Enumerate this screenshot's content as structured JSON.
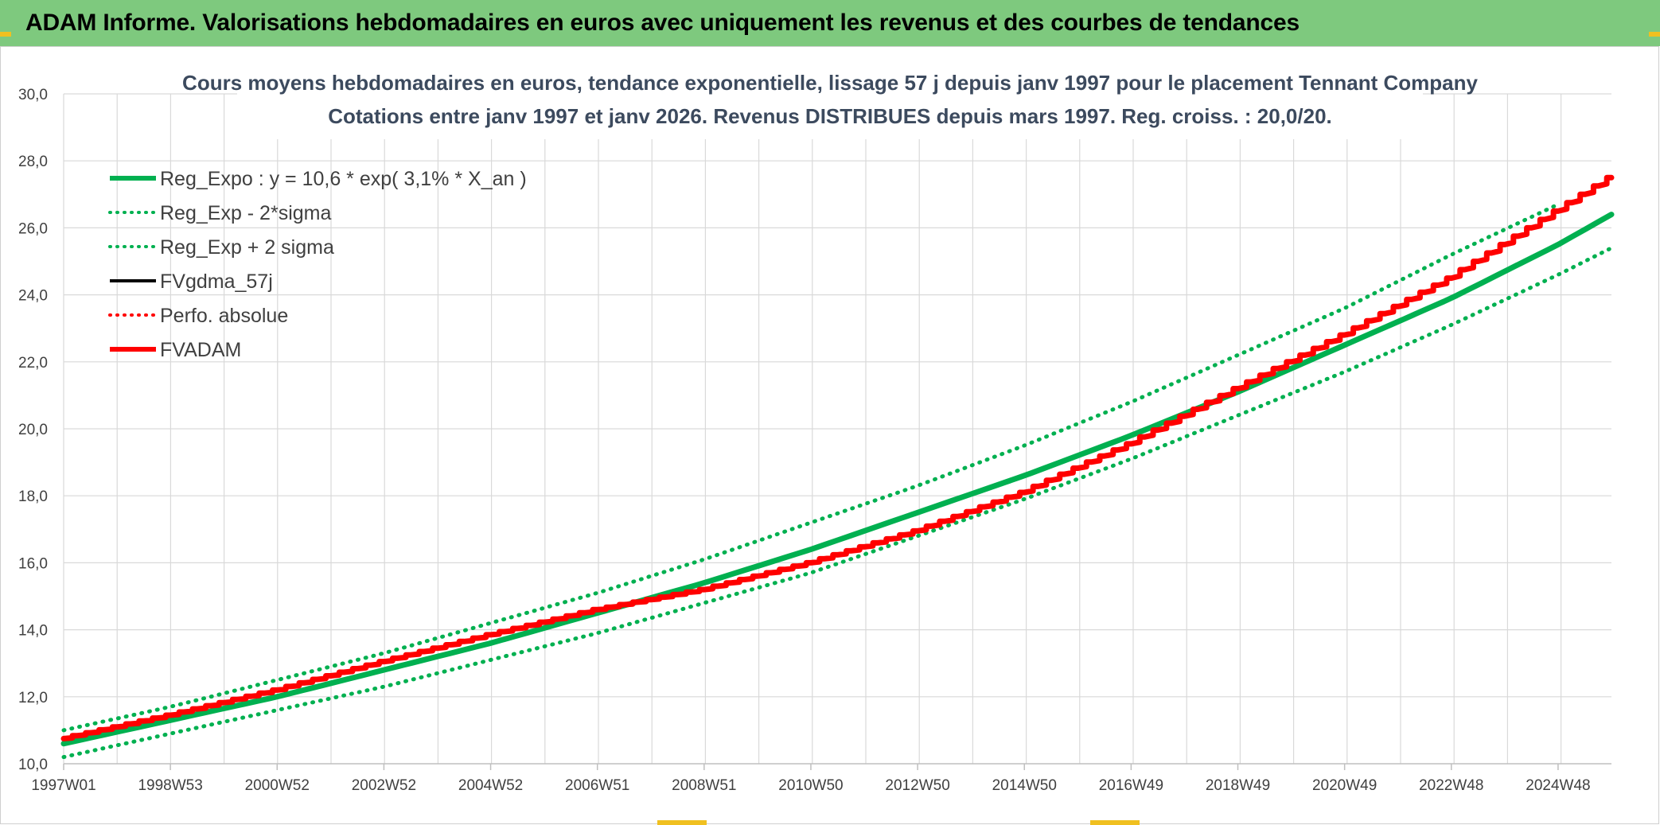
{
  "banner": {
    "title": "ADAM Informe. Valorisations hebdomadaires en euros avec uniquement les revenus et des courbes de tendances"
  },
  "colors": {
    "banner_bg": "#7ec97e",
    "green": "#00b050",
    "red": "#ff0000",
    "black": "#000000",
    "grid": "#d9d9d9",
    "accent": "#f0c020"
  },
  "chart_data": {
    "type": "line",
    "title": "Cours moyens hebdomadaires en euros, tendance exponentielle, lissage 57 j depuis janv 1997 pour le placement Tennant Company",
    "subtitle": "Cotations entre janv 1997 et janv 2026. Revenus DISTRIBUES depuis mars 1997. Reg. croiss. : 20,0/20.",
    "xlabel": "",
    "ylabel": "",
    "ylim": [
      10,
      30
    ],
    "yticks": [
      "10,0",
      "12,0",
      "14,0",
      "16,0",
      "18,0",
      "20,0",
      "22,0",
      "24,0",
      "26,0",
      "28,0",
      "30,0"
    ],
    "xlim": [
      1997.0,
      2026.0
    ],
    "xticks": [
      {
        "label": "1997W01",
        "year": 1997.0
      },
      {
        "label": "1998W53",
        "year": 1999.0
      },
      {
        "label": "2000W52",
        "year": 2001.0
      },
      {
        "label": "2002W52",
        "year": 2003.0
      },
      {
        "label": "2004W52",
        "year": 2005.0
      },
      {
        "label": "2006W51",
        "year": 2007.0
      },
      {
        "label": "2008W51",
        "year": 2009.0
      },
      {
        "label": "2010W50",
        "year": 2011.0
      },
      {
        "label": "2012W50",
        "year": 2013.0
      },
      {
        "label": "2014W50",
        "year": 2015.0
      },
      {
        "label": "2016W49",
        "year": 2017.0
      },
      {
        "label": "2018W49",
        "year": 2019.0
      },
      {
        "label": "2020W49",
        "year": 2021.0
      },
      {
        "label": "2022W48",
        "year": 2023.0
      },
      {
        "label": "2024W48",
        "year": 2025.0
      }
    ],
    "grid": true,
    "legend_position": "top-left",
    "series": [
      {
        "name": "Reg_Expo : y = 10,6 * exp( 3,1% *  X_an )",
        "color": "#00b050",
        "style": "solid",
        "width": "thick",
        "x": [
          1997,
          1999,
          2001,
          2003,
          2005,
          2007,
          2009,
          2011,
          2013,
          2015,
          2017,
          2019,
          2021,
          2023,
          2025,
          2026
        ],
        "y": [
          10.6,
          11.3,
          12.0,
          12.8,
          13.6,
          14.5,
          15.4,
          16.4,
          17.5,
          18.6,
          19.8,
          21.1,
          22.5,
          23.9,
          25.5,
          26.4
        ]
      },
      {
        "name": "Reg_Exp - 2*sigma",
        "color": "#00b050",
        "style": "dotted",
        "width": "medium",
        "x": [
          1997,
          1999,
          2001,
          2003,
          2005,
          2007,
          2009,
          2011,
          2013,
          2015,
          2017,
          2019,
          2021,
          2023,
          2025,
          2026
        ],
        "y": [
          10.2,
          10.9,
          11.6,
          12.3,
          13.1,
          13.9,
          14.8,
          15.7,
          16.8,
          17.9,
          19.1,
          20.4,
          21.7,
          23.1,
          24.6,
          25.4
        ]
      },
      {
        "name": "Reg_Exp + 2 sigma",
        "color": "#00b050",
        "style": "dotted",
        "width": "medium",
        "x": [
          1997,
          1999,
          2001,
          2003,
          2005,
          2007,
          2009,
          2011,
          2013,
          2015,
          2017,
          2019,
          2021,
          2023,
          2025
        ],
        "y": [
          11.0,
          11.7,
          12.5,
          13.3,
          14.2,
          15.1,
          16.1,
          17.2,
          18.3,
          19.5,
          20.8,
          22.2,
          23.6,
          25.2,
          26.7
        ]
      },
      {
        "name": "FVgdma_57j",
        "color": "#000000",
        "style": "solid",
        "width": "medium",
        "x": [],
        "y": []
      },
      {
        "name": "Perfo. absolue",
        "color": "#ff0000",
        "style": "dotted",
        "width": "medium",
        "x": [],
        "y": []
      },
      {
        "name": "FVADAM",
        "color": "#ff0000",
        "style": "solid",
        "width": "thick",
        "x": [
          1997,
          1999,
          2001,
          2003,
          2005,
          2007,
          2009,
          2011,
          2013,
          2015,
          2017,
          2019,
          2021,
          2023,
          2025,
          2026
        ],
        "y": [
          10.75,
          11.45,
          12.2,
          13.05,
          13.85,
          14.6,
          15.2,
          16.0,
          16.95,
          18.1,
          19.55,
          21.2,
          22.8,
          24.5,
          26.5,
          27.5
        ]
      }
    ]
  }
}
